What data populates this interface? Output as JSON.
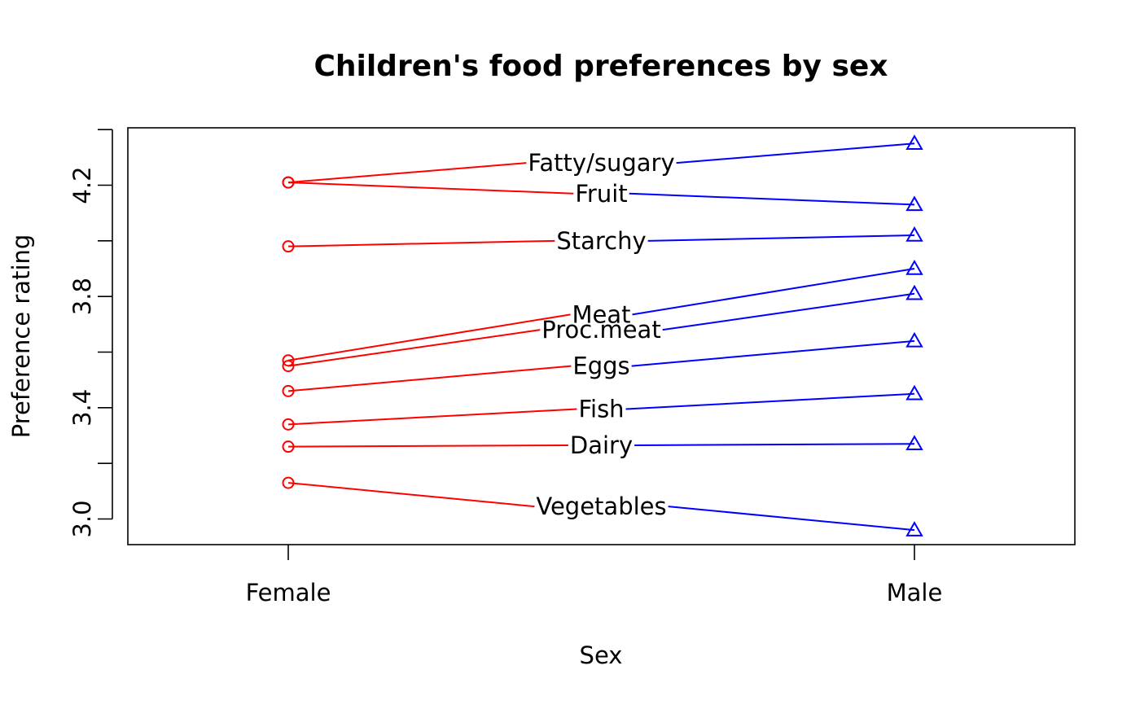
{
  "chart_data": {
    "type": "line",
    "title": "Children's food preferences by sex",
    "xlabel": "Sex",
    "ylabel": "Preference rating",
    "categories": [
      "Female",
      "Male"
    ],
    "ylim": [
      2.9,
      4.4
    ],
    "yticks": [
      3.0,
      3.2,
      3.4,
      3.6,
      3.8,
      4.0,
      4.2,
      4.4
    ],
    "yticklabels": [
      "3.0",
      "3.4",
      "3.8",
      "4.2"
    ],
    "grid": false,
    "legend": "none",
    "female_color": "#ff0000",
    "male_color": "#0000ff",
    "female_marker": "circle",
    "male_marker": "triangle",
    "items": [
      {
        "label": "Fatty/sugary",
        "female": 4.21,
        "male": 4.35
      },
      {
        "label": "Fruit",
        "female": 4.21,
        "male": 4.13
      },
      {
        "label": "Starchy",
        "female": 3.98,
        "male": 4.02
      },
      {
        "label": "Meat",
        "female": 3.57,
        "male": 3.9
      },
      {
        "label": "Proc.meat",
        "female": 3.55,
        "male": 3.81
      },
      {
        "label": "Eggs",
        "female": 3.46,
        "male": 3.64
      },
      {
        "label": "Fish",
        "female": 3.34,
        "male": 3.45
      },
      {
        "label": "Dairy",
        "female": 3.26,
        "male": 3.27
      },
      {
        "label": "Vegetables",
        "female": 3.13,
        "male": 2.96
      }
    ]
  }
}
